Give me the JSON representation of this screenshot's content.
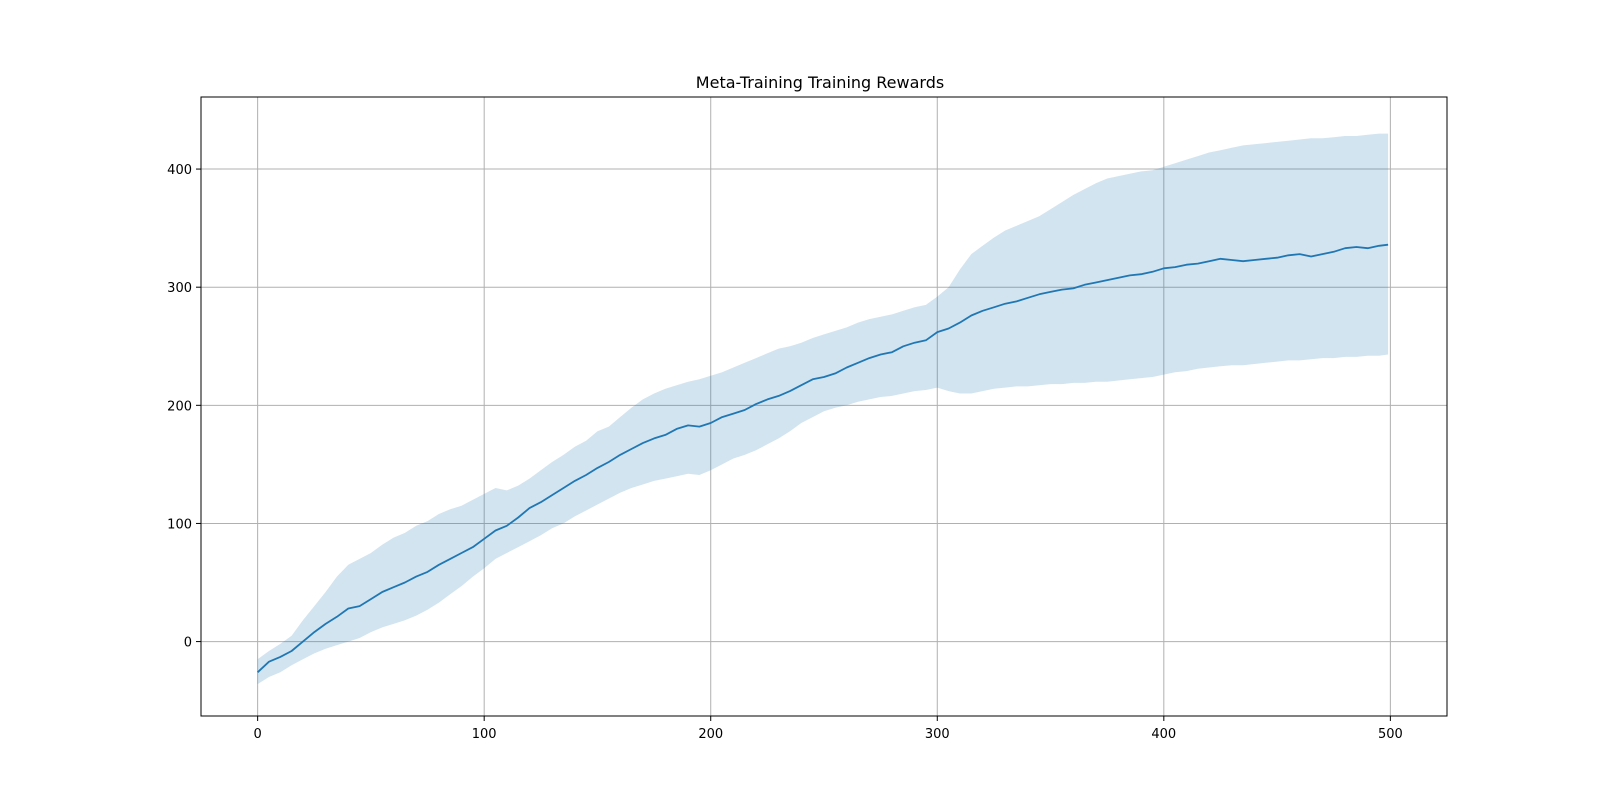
{
  "chart_data": {
    "type": "line",
    "title": "Meta-Training Training Rewards",
    "xlabel": "",
    "ylabel": "",
    "xlim": [
      -25,
      525
    ],
    "ylim": [
      -63,
      461
    ],
    "x_ticks": [
      0,
      100,
      200,
      300,
      400,
      500
    ],
    "x_tick_labels": [
      "0",
      "100",
      "200",
      "300",
      "400",
      "500"
    ],
    "y_ticks": [
      0,
      100,
      200,
      300,
      400
    ],
    "y_tick_labels": [
      "0",
      "100",
      "200",
      "300",
      "400"
    ],
    "grid": true,
    "series": [
      {
        "color": "#1f77b4",
        "band_color": "#1f77b4",
        "band_opacity": 0.2,
        "x": [
          0,
          5,
          10,
          15,
          20,
          25,
          30,
          35,
          40,
          45,
          50,
          55,
          60,
          65,
          70,
          75,
          80,
          85,
          90,
          95,
          100,
          105,
          110,
          115,
          120,
          125,
          130,
          135,
          140,
          145,
          150,
          155,
          160,
          165,
          170,
          175,
          180,
          185,
          190,
          195,
          200,
          205,
          210,
          215,
          220,
          225,
          230,
          235,
          240,
          245,
          250,
          255,
          260,
          265,
          270,
          275,
          280,
          285,
          290,
          295,
          300,
          305,
          310,
          315,
          320,
          325,
          330,
          335,
          340,
          345,
          350,
          355,
          360,
          365,
          370,
          375,
          380,
          385,
          390,
          395,
          400,
          405,
          410,
          415,
          420,
          425,
          430,
          435,
          440,
          445,
          450,
          455,
          460,
          465,
          470,
          475,
          480,
          485,
          490,
          495,
          499
        ],
        "mean": [
          -26,
          -17,
          -13,
          -8,
          0,
          8,
          15,
          21,
          28,
          30,
          36,
          42,
          46,
          50,
          55,
          59,
          65,
          70,
          75,
          80,
          87,
          94,
          98,
          105,
          113,
          118,
          124,
          130,
          136,
          141,
          147,
          152,
          158,
          163,
          168,
          172,
          175,
          180,
          183,
          182,
          185,
          190,
          193,
          196,
          201,
          205,
          208,
          212,
          217,
          222,
          224,
          227,
          232,
          236,
          240,
          243,
          245,
          250,
          253,
          255,
          262,
          265,
          270,
          276,
          280,
          283,
          286,
          288,
          291,
          294,
          296,
          298,
          299,
          302,
          304,
          306,
          308,
          310,
          311,
          313,
          316,
          317,
          319,
          320,
          322,
          324,
          323,
          322,
          323,
          324,
          325,
          327,
          328,
          326,
          328,
          330,
          333,
          334,
          333,
          335,
          336
        ],
        "upper": [
          -15,
          -8,
          -2,
          5,
          18,
          30,
          42,
          55,
          65,
          70,
          75,
          82,
          88,
          92,
          98,
          102,
          108,
          112,
          115,
          120,
          125,
          130,
          128,
          132,
          138,
          145,
          152,
          158,
          165,
          170,
          178,
          182,
          190,
          198,
          205,
          210,
          214,
          217,
          220,
          222,
          225,
          228,
          232,
          236,
          240,
          244,
          248,
          250,
          253,
          257,
          260,
          263,
          266,
          270,
          273,
          275,
          277,
          280,
          283,
          285,
          292,
          300,
          315,
          328,
          335,
          342,
          348,
          352,
          356,
          360,
          366,
          372,
          378,
          383,
          388,
          392,
          394,
          396,
          398,
          399,
          402,
          405,
          408,
          411,
          414,
          416,
          418,
          420,
          421,
          422,
          423,
          424,
          425,
          426,
          426,
          427,
          428,
          428,
          429,
          430,
          430
        ],
        "lower": [
          -36,
          -30,
          -26,
          -20,
          -15,
          -10,
          -6,
          -3,
          0,
          3,
          8,
          12,
          15,
          18,
          22,
          27,
          33,
          40,
          47,
          55,
          62,
          70,
          75,
          80,
          85,
          90,
          96,
          100,
          106,
          111,
          116,
          121,
          126,
          130,
          133,
          136,
          138,
          140,
          142,
          141,
          145,
          150,
          155,
          158,
          162,
          167,
          172,
          178,
          185,
          190,
          195,
          198,
          200,
          203,
          205,
          207,
          208,
          210,
          212,
          213,
          215,
          212,
          210,
          210,
          212,
          214,
          215,
          216,
          216,
          217,
          218,
          218,
          219,
          219,
          220,
          220,
          221,
          222,
          223,
          224,
          226,
          228,
          229,
          231,
          232,
          233,
          234,
          234,
          235,
          236,
          237,
          238,
          238,
          239,
          240,
          240,
          241,
          241,
          242,
          242,
          243
        ]
      }
    ]
  }
}
